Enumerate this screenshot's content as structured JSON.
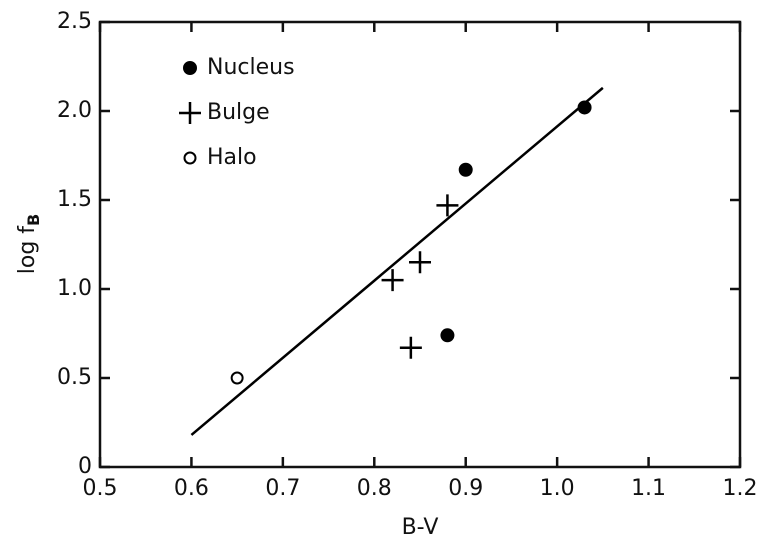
{
  "chart_data": {
    "type": "scatter",
    "xlabel": "B-V",
    "ylabel": "log f",
    "ylabel_subscript": "B",
    "series": [
      {
        "name": "Nucleus",
        "marker": "filled-circle",
        "color": "#000000",
        "x": [
          1.03,
          0.9,
          0.88
        ],
        "values": [
          2.02,
          1.67,
          0.74
        ]
      },
      {
        "name": "Bulge",
        "marker": "plus",
        "color": "#000000",
        "x": [
          0.88,
          0.85,
          0.82,
          0.84
        ],
        "values": [
          1.47,
          1.15,
          1.05,
          0.67
        ]
      },
      {
        "name": "Halo",
        "marker": "open-circle",
        "color": "#000000",
        "x": [
          0.65
        ],
        "values": [
          0.5
        ]
      }
    ],
    "fit_line": {
      "x": [
        0.6,
        1.05
      ],
      "values": [
        0.18,
        2.13
      ],
      "color": "#000000"
    },
    "xlim": [
      0.5,
      1.2
    ],
    "xticks": [
      0.5,
      0.6,
      0.7,
      0.8,
      0.9,
      {
        "value": 1.0,
        "label": "1.0"
      },
      1.1,
      1.2
    ],
    "ylim": [
      0,
      2.5
    ],
    "yticks": [
      0,
      0.5,
      {
        "value": 1.0,
        "label": "1.0"
      },
      1.5,
      {
        "value": 2.0,
        "label": "2.0"
      },
      2.5
    ],
    "legend": "upper left"
  }
}
